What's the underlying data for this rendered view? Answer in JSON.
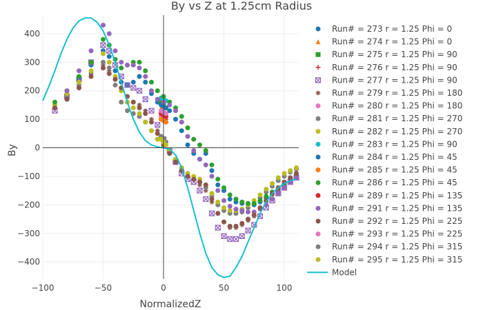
{
  "chart_data": {
    "type": "scatter",
    "title": "By vs Z at 1.25cm Radius",
    "xlabel": "NormalizedZ",
    "ylabel": "By",
    "xlim": [
      -100,
      112
    ],
    "ylim": [
      -460,
      465
    ],
    "xticks": [
      -100,
      -50,
      0,
      50,
      100
    ],
    "yticks": [
      -400,
      -300,
      -200,
      -100,
      0,
      100,
      200,
      300,
      400
    ],
    "grid": true,
    "legend_position": "right",
    "series": [
      {
        "name": "Run# = 273 r =  1.25 Phi =  0",
        "color": "#1f77b4",
        "marker": "circle",
        "x": [
          -90,
          -80,
          -70,
          -60,
          -50,
          -45,
          -40,
          -35,
          -30,
          -25,
          -20,
          -15,
          -10,
          -5,
          0,
          5,
          10,
          15,
          20,
          25,
          30,
          35,
          40,
          45,
          50,
          55,
          60,
          65,
          70,
          75,
          80,
          85,
          90,
          95,
          100,
          105,
          110
        ],
        "y": [
          150,
          190,
          240,
          290,
          340,
          320,
          270,
          230,
          220,
          230,
          250,
          230,
          190,
          160,
          150,
          130,
          100,
          60,
          10,
          -20,
          -40,
          -20,
          -80,
          -130,
          -150,
          -180,
          -190,
          -195,
          -200,
          -200,
          -190,
          -175,
          -160,
          -145,
          -130,
          -110,
          -95
        ]
      },
      {
        "name": "Run# = 274 r =  1.25 Phi =  0",
        "color": "#ff7f0e",
        "marker": "triangle",
        "x": [
          -2,
          0,
          2
        ],
        "y": [
          140,
          120,
          100
        ]
      },
      {
        "name": "Run# = 275 r =  1.25 Phi =  90",
        "color": "#2ca02c",
        "marker": "square",
        "x": [
          -2,
          0,
          2
        ],
        "y": [
          160,
          150,
          140
        ]
      },
      {
        "name": "Run# = 276 r =  1.25 Phi =  90",
        "color": "#d62728",
        "marker": "plus",
        "x": [
          -2,
          0,
          2
        ],
        "y": [
          130,
          110,
          100
        ]
      },
      {
        "name": "Run# = 277 r =  1.25 Phi =  90",
        "color": "#9467bd",
        "marker": "square-x",
        "x": [
          -90,
          -80,
          -70,
          -60,
          -50,
          -45,
          -40,
          -35,
          -30,
          -25,
          -20,
          -15,
          -10,
          -5,
          0,
          5,
          10,
          15,
          20,
          25,
          30,
          35,
          40,
          45,
          50,
          55,
          60,
          65,
          70,
          75,
          80,
          85,
          90,
          95,
          100,
          105,
          110
        ],
        "y": [
          130,
          180,
          240,
          300,
          360,
          340,
          290,
          250,
          220,
          210,
          200,
          170,
          130,
          80,
          30,
          -10,
          -50,
          -90,
          -110,
          -120,
          -150,
          -180,
          -230,
          -280,
          -310,
          -320,
          -320,
          -310,
          -290,
          -270,
          -240,
          -210,
          -185,
          -160,
          -140,
          -120,
          -105
        ]
      },
      {
        "name": "Run# = 279 r =  1.25 Phi =  180",
        "color": "#8c564b",
        "marker": "asterisk",
        "x": [
          -90,
          -80,
          -70,
          -60,
          -50,
          -45,
          -40,
          -35,
          -30,
          -25,
          -20,
          -15,
          -10,
          -5,
          0,
          5,
          10,
          15,
          20,
          25,
          30,
          35,
          40,
          45,
          50,
          55,
          60,
          65,
          70,
          75,
          80,
          85,
          90,
          95,
          100,
          105,
          110
        ],
        "y": [
          140,
          170,
          210,
          250,
          290,
          270,
          240,
          210,
          180,
          160,
          150,
          130,
          100,
          60,
          20,
          -10,
          -40,
          -70,
          -90,
          -110,
          -130,
          -150,
          -190,
          -230,
          -260,
          -280,
          -280,
          -270,
          -255,
          -240,
          -215,
          -190,
          -165,
          -145,
          -125,
          -110,
          -95
        ]
      },
      {
        "name": "Run# = 280 r =  1.25 Phi =  180",
        "color": "#e377c2",
        "marker": "circle",
        "x": [
          -2,
          0,
          2
        ],
        "y": [
          110,
          100,
          90
        ]
      },
      {
        "name": "Run# = 281 r =  1.25 Phi =  270",
        "color": "#7f7f7f",
        "marker": "circle",
        "x": [
          -90,
          -80,
          -70,
          -60,
          -50,
          -45,
          -40,
          -35,
          -30,
          -25,
          -20,
          -15,
          -10,
          -5,
          0,
          5,
          10,
          15,
          20,
          25,
          30,
          35,
          40,
          45,
          50,
          55,
          60,
          65,
          70,
          75,
          80,
          85,
          90,
          95,
          100,
          105,
          110
        ],
        "y": [
          140,
          180,
          220,
          260,
          300,
          280,
          220,
          160,
          130,
          120,
          110,
          90,
          60,
          30,
          10,
          -20,
          -50,
          -80,
          -100,
          -110,
          -120,
          -140,
          -170,
          -200,
          -220,
          -230,
          -230,
          -225,
          -210,
          -195,
          -175,
          -155,
          -135,
          -115,
          -100,
          -85,
          -75
        ]
      },
      {
        "name": "Run# = 282 r =  1.25 Phi =  270",
        "color": "#bcbd22",
        "marker": "circle",
        "x": [
          -90,
          -80,
          -70,
          -60,
          -50,
          -45,
          -40,
          -35,
          -30,
          -25,
          -20,
          -15,
          -10,
          -5,
          0,
          5,
          10,
          15,
          20,
          25,
          30,
          35,
          40,
          45,
          50,
          55,
          60,
          65,
          70,
          75,
          80,
          85,
          90,
          95,
          100,
          105,
          110
        ],
        "y": [
          150,
          190,
          230,
          270,
          330,
          300,
          250,
          200,
          160,
          140,
          120,
          90,
          60,
          30,
          10,
          -10,
          -40,
          -70,
          -90,
          -100,
          -110,
          -130,
          -160,
          -190,
          -210,
          -220,
          -220,
          -215,
          -200,
          -185,
          -165,
          -145,
          -125,
          -105,
          -90,
          -80,
          -70
        ]
      },
      {
        "name": "Run# = 283 r =  1.25 Phi =  90",
        "color": "#17becf",
        "marker": "circle",
        "x": [
          -2,
          0,
          2
        ],
        "y": [
          175,
          170,
          165
        ]
      },
      {
        "name": "Run# = 284 r =  1.25 Phi =  45",
        "color": "#1f77b4",
        "marker": "circle",
        "x": [
          -2,
          0,
          2
        ],
        "y": [
          150,
          145,
          140
        ]
      },
      {
        "name": "Run# = 285 r =  1.25 Phi =  45",
        "color": "#ff7f0e",
        "marker": "circle",
        "x": [
          -2,
          0,
          2
        ],
        "y": [
          100,
          95,
          90
        ]
      },
      {
        "name": "Run# = 286 r =  1.25 Phi =  45",
        "color": "#2ca02c",
        "marker": "circle",
        "x": [
          -90,
          -80,
          -70,
          -60,
          -50,
          -45,
          -40,
          -35,
          -30,
          -25,
          -20,
          -15,
          -10,
          -5,
          0,
          5,
          10,
          15,
          20,
          25,
          30,
          35,
          40,
          45,
          50,
          55,
          60,
          65,
          70,
          75,
          80,
          85,
          90,
          95,
          100,
          105,
          110
        ],
        "y": [
          160,
          200,
          250,
          300,
          380,
          360,
          310,
          280,
          290,
          300,
          300,
          270,
          230,
          200,
          180,
          160,
          140,
          110,
          70,
          30,
          10,
          -10,
          -60,
          -110,
          -140,
          -165,
          -180,
          -190,
          -195,
          -195,
          -185,
          -170,
          -155,
          -140,
          -125,
          -105,
          -90
        ]
      },
      {
        "name": "Run# = 289 r =  1.25 Phi =  135",
        "color": "#d62728",
        "marker": "circle",
        "x": [
          -2,
          0,
          2
        ],
        "y": [
          120,
          115,
          110
        ]
      },
      {
        "name": "Run# = 291 r =  1.25 Phi =  135",
        "color": "#9467bd",
        "marker": "circle",
        "x": [
          -90,
          -80,
          -70,
          -60,
          -50,
          -45,
          -40,
          -35,
          -30,
          -25,
          -20,
          -15,
          -10,
          -5,
          0,
          5,
          10,
          15,
          20,
          25,
          30,
          35,
          40,
          45,
          50,
          55,
          60,
          65,
          70,
          75,
          80,
          85,
          90,
          95,
          100,
          105,
          110
        ],
        "y": [
          140,
          200,
          270,
          340,
          430,
          400,
          340,
          300,
          290,
          290,
          280,
          250,
          200,
          170,
          160,
          150,
          130,
          90,
          40,
          -10,
          -40,
          -60,
          -100,
          -150,
          -185,
          -205,
          -215,
          -220,
          -225,
          -225,
          -215,
          -200,
          -180,
          -160,
          -140,
          -120,
          -105
        ]
      },
      {
        "name": "Run# = 292 r =  1.25 Phi =  225",
        "color": "#8c564b",
        "marker": "circle",
        "x": [
          -90,
          -80,
          -70,
          -60,
          -50,
          -45,
          -40,
          -35,
          -30,
          -25,
          -20,
          -15,
          -10,
          -5,
          0,
          5,
          10,
          15,
          20,
          25,
          30,
          35,
          40,
          45,
          50,
          55,
          60,
          65,
          70,
          75,
          80,
          85,
          90,
          95,
          100,
          105,
          110
        ],
        "y": [
          140,
          170,
          210,
          250,
          280,
          260,
          240,
          210,
          180,
          160,
          140,
          120,
          90,
          50,
          10,
          -20,
          -50,
          -80,
          -100,
          -110,
          -120,
          -130,
          -180,
          -230,
          -260,
          -275,
          -275,
          -265,
          -250,
          -235,
          -210,
          -185,
          -160,
          -140,
          -120,
          -105,
          -90
        ]
      },
      {
        "name": "Run# = 293 r =  1.25 Phi =  225",
        "color": "#e377c2",
        "marker": "circle",
        "x": [
          -2,
          0,
          2
        ],
        "y": [
          130,
          125,
          120
        ]
      },
      {
        "name": "Run# = 294 r =  1.25 Phi =  315",
        "color": "#7f7f7f",
        "marker": "circle",
        "x": [
          -2,
          0,
          2
        ],
        "y": [
          40,
          30,
          20
        ]
      },
      {
        "name": "Run# = 295 r =  1.25 Phi =  315",
        "color": "#bcbd22",
        "marker": "circle",
        "x": [
          -2,
          0,
          2
        ],
        "y": [
          30,
          20,
          10
        ]
      },
      {
        "name": "Model",
        "color": "#17becf",
        "marker": "line",
        "x": [
          -100,
          -95,
          -90,
          -85,
          -80,
          -75,
          -70,
          -65,
          -60,
          -55,
          -50,
          -45,
          -40,
          -35,
          -30,
          -25,
          -20,
          -15,
          -10,
          -5,
          0,
          5,
          10,
          15,
          20,
          25,
          30,
          35,
          40,
          45,
          50,
          55,
          60,
          65,
          70,
          75,
          80,
          85,
          90,
          95,
          100,
          105,
          110
        ],
        "y": [
          165,
          215,
          270,
          330,
          380,
          420,
          445,
          455,
          455,
          440,
          410,
          360,
          300,
          230,
          160,
          100,
          55,
          25,
          10,
          3,
          0,
          -5,
          -25,
          -70,
          -140,
          -220,
          -300,
          -370,
          -420,
          -445,
          -455,
          -450,
          -420,
          -380,
          -330,
          -280,
          -230,
          -190,
          -160,
          -140,
          -125,
          -115,
          -110
        ]
      }
    ]
  }
}
